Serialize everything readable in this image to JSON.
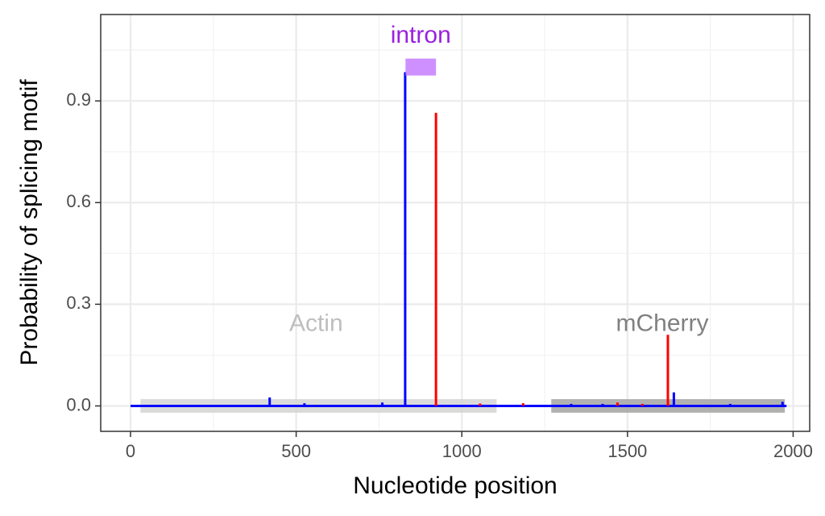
{
  "chart_data": {
    "type": "line",
    "title": "",
    "xlabel": "Nucleotide position",
    "ylabel": "Probability of splicing motif",
    "xlim": [
      -90,
      2050
    ],
    "ylim": [
      -0.075,
      1.155
    ],
    "x_ticks": [
      0,
      500,
      1000,
      1500,
      2000
    ],
    "x_tick_labels": [
      "0",
      "500",
      "1000",
      "1500",
      "2000"
    ],
    "y_ticks": [
      0.0,
      0.3,
      0.6,
      0.9
    ],
    "y_tick_labels": [
      "0.0",
      "0.3",
      "0.6",
      "0.9"
    ],
    "grid": true,
    "legend": "none",
    "regions": [
      {
        "label": "Actin",
        "x_start": 30,
        "x_end": 1105,
        "color": "#d3d3d3",
        "label_color": "#bebebe",
        "label_x": 560,
        "label_y": 0.24
      },
      {
        "label": "mCherry",
        "x_start": 1270,
        "x_end": 1975,
        "color": "#a9a9a9",
        "label_color": "#808080",
        "label_x": 1605,
        "label_y": 0.24
      },
      {
        "label": "intron",
        "x_start": 830,
        "x_end": 922,
        "color": "#c77cff",
        "label_color": "#9b1fe0",
        "label_x": 876,
        "label_y": 1.09,
        "y_bottom": 0.975,
        "y_top": 1.025
      }
    ],
    "series": [
      {
        "color": "#0000ff",
        "x_range": [
          0,
          1980
        ],
        "spikes": [
          {
            "x": 420,
            "y": 0.025
          },
          {
            "x": 525,
            "y": 0.008
          },
          {
            "x": 760,
            "y": 0.01
          },
          {
            "x": 829,
            "y": 0.985
          },
          {
            "x": 1330,
            "y": 0.006
          },
          {
            "x": 1425,
            "y": 0.006
          },
          {
            "x": 1640,
            "y": 0.04
          },
          {
            "x": 1810,
            "y": 0.006
          },
          {
            "x": 1968,
            "y": 0.012
          }
        ]
      },
      {
        "color": "#ff0000",
        "x_range": [
          0,
          1980
        ],
        "spikes": [
          {
            "x": 922,
            "y": 0.865
          },
          {
            "x": 1055,
            "y": 0.007
          },
          {
            "x": 1185,
            "y": 0.008
          },
          {
            "x": 1470,
            "y": 0.01
          },
          {
            "x": 1545,
            "y": 0.006
          },
          {
            "x": 1622,
            "y": 0.21
          }
        ]
      }
    ]
  }
}
